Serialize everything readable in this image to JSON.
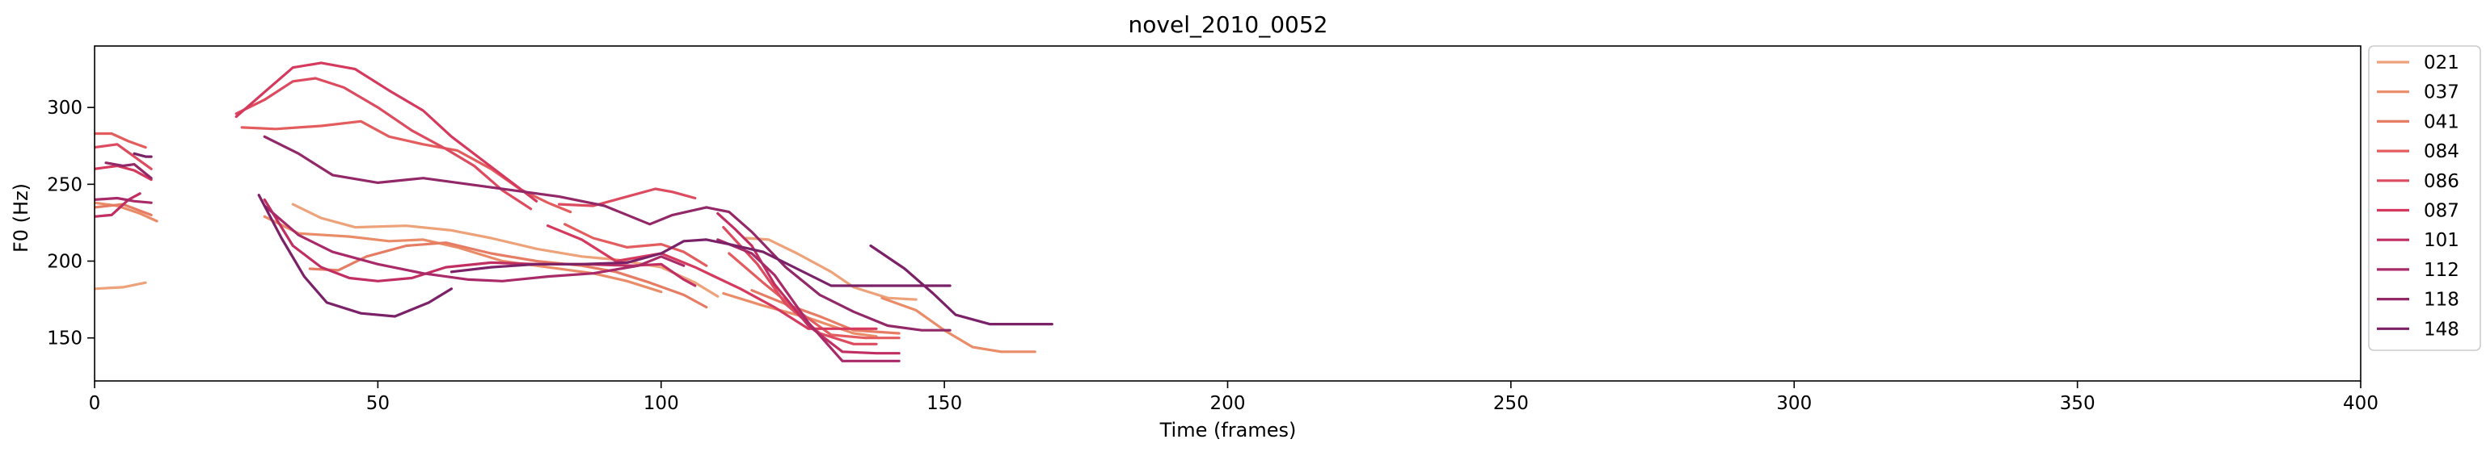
{
  "chart_data": {
    "type": "line",
    "title": "novel_2010_0052",
    "xlabel": "Time (frames)",
    "ylabel": "F0 (Hz)",
    "xlim": [
      0,
      400
    ],
    "ylim": [
      122,
      340
    ],
    "xticks": [
      0,
      50,
      100,
      150,
      200,
      250,
      300,
      350,
      400
    ],
    "yticks": [
      150,
      200,
      250,
      300
    ],
    "grid": false,
    "legend_position": "outside-right-top",
    "series": [
      {
        "name": "021",
        "color": "#eda27a",
        "segments": [
          [
            [
              0,
              182
            ],
            [
              5,
              183
            ],
            [
              9,
              186
            ]
          ],
          [
            [
              35,
              237
            ],
            [
              40,
              228
            ],
            [
              46,
              222
            ],
            [
              55,
              223
            ],
            [
              63,
              220
            ],
            [
              70,
              215
            ],
            [
              78,
              208
            ],
            [
              86,
              203
            ],
            [
              92,
              201
            ],
            [
              100,
              196
            ],
            [
              106,
              186
            ],
            [
              110,
              177
            ]
          ],
          [
            [
              115,
              215
            ],
            [
              119,
              214
            ],
            [
              124,
              205
            ],
            [
              130,
              193
            ],
            [
              134,
              183
            ],
            [
              140,
              176
            ],
            [
              145,
              175
            ]
          ]
        ]
      },
      {
        "name": "037",
        "color": "#ea8c68",
        "segments": [
          [
            [
              0,
              238
            ],
            [
              4,
              236
            ],
            [
              8,
              231
            ],
            [
              11,
              226
            ]
          ],
          [
            [
              30,
              229
            ],
            [
              36,
              218
            ],
            [
              45,
              216
            ],
            [
              52,
              213
            ],
            [
              58,
              214
            ],
            [
              64,
              209
            ],
            [
              72,
              200
            ],
            [
              80,
              196
            ],
            [
              88,
              192
            ],
            [
              94,
              187
            ],
            [
              100,
              180
            ]
          ],
          [
            [
              111,
              179
            ],
            [
              118,
              171
            ],
            [
              126,
              163
            ],
            [
              134,
              153
            ],
            [
              138,
              151
            ]
          ],
          [
            [
              139,
              176
            ],
            [
              145,
              168
            ],
            [
              150,
              155
            ],
            [
              155,
              144
            ],
            [
              160,
              141
            ],
            [
              166,
              141
            ]
          ]
        ]
      },
      {
        "name": "041",
        "color": "#e67c63",
        "segments": [
          [
            [
              0,
              235
            ],
            [
              5,
              237
            ],
            [
              10,
              230
            ]
          ],
          [
            [
              38,
              195
            ],
            [
              43,
              194
            ],
            [
              48,
              203
            ],
            [
              55,
              210
            ],
            [
              62,
              212
            ],
            [
              70,
              205
            ],
            [
              78,
              200
            ],
            [
              86,
              197
            ],
            [
              92,
              193
            ],
            [
              98,
              186
            ],
            [
              104,
              178
            ],
            [
              108,
              170
            ]
          ],
          [
            [
              116,
              181
            ],
            [
              122,
              172
            ],
            [
              128,
              164
            ],
            [
              134,
              155
            ],
            [
              142,
              153
            ]
          ]
        ]
      },
      {
        "name": "084",
        "color": "#e35d5f",
        "segments": [
          [
            [
              0,
              283
            ],
            [
              3,
              283
            ],
            [
              6,
              278
            ],
            [
              9,
              274
            ]
          ],
          [
            [
              26,
              287
            ],
            [
              32,
              286
            ],
            [
              40,
              288
            ],
            [
              47,
              291
            ],
            [
              52,
              281
            ],
            [
              58,
              276
            ],
            [
              64,
              272
            ],
            [
              70,
              260
            ],
            [
              75,
              247
            ],
            [
              80,
              238
            ],
            [
              84,
              232
            ]
          ],
          [
            [
              83,
              224
            ],
            [
              88,
              215
            ],
            [
              94,
              209
            ],
            [
              100,
              211
            ],
            [
              104,
              206
            ],
            [
              108,
              197
            ]
          ],
          [
            [
              112,
              205
            ],
            [
              118,
              186
            ],
            [
              124,
              168
            ],
            [
              130,
              152
            ],
            [
              136,
              150
            ],
            [
              142,
              150
            ]
          ]
        ]
      },
      {
        "name": "086",
        "color": "#dc4b5f",
        "segments": [
          [
            [
              0,
              274
            ],
            [
              4,
              276
            ],
            [
              7,
              268
            ],
            [
              10,
              260
            ]
          ],
          [
            [
              25,
              296
            ],
            [
              30,
              305
            ],
            [
              35,
              317
            ],
            [
              39,
              319
            ],
            [
              44,
              313
            ],
            [
              50,
              300
            ],
            [
              56,
              285
            ],
            [
              62,
              273
            ],
            [
              67,
              262
            ],
            [
              72,
              246
            ],
            [
              77,
              234
            ]
          ],
          [
            [
              82,
              237
            ],
            [
              88,
              236
            ],
            [
              94,
              242
            ],
            [
              99,
              247
            ],
            [
              102,
              245
            ],
            [
              106,
              241
            ]
          ],
          [
            [
              111,
              222
            ],
            [
              117,
              198
            ],
            [
              122,
              172
            ],
            [
              128,
              153
            ],
            [
              134,
              146
            ],
            [
              138,
              146
            ]
          ]
        ]
      },
      {
        "name": "087",
        "color": "#d5395e",
        "segments": [
          [
            [
              0,
              260
            ],
            [
              4,
              262
            ],
            [
              7,
              259
            ],
            [
              10,
              253
            ]
          ],
          [
            [
              25,
              294
            ],
            [
              30,
              310
            ],
            [
              35,
              326
            ],
            [
              40,
              329
            ],
            [
              46,
              325
            ],
            [
              52,
              311
            ],
            [
              58,
              298
            ],
            [
              63,
              281
            ],
            [
              68,
              267
            ],
            [
              73,
              253
            ],
            [
              78,
              239
            ]
          ],
          [
            [
              80,
              223
            ],
            [
              86,
              214
            ],
            [
              92,
              200
            ],
            [
              100,
              205
            ],
            [
              106,
              196
            ],
            [
              110,
              189
            ],
            [
              114,
              182
            ],
            [
              120,
              170
            ],
            [
              126,
              156
            ],
            [
              132,
              156
            ],
            [
              138,
              156
            ]
          ]
        ]
      },
      {
        "name": "101",
        "color": "#c12e62",
        "segments": [
          [
            [
              0,
              229
            ],
            [
              3,
              230
            ],
            [
              6,
              240
            ],
            [
              8,
              244
            ]
          ],
          [
            [
              30,
              240
            ],
            [
              35,
              210
            ],
            [
              40,
              196
            ],
            [
              45,
              189
            ],
            [
              50,
              187
            ],
            [
              56,
              189
            ],
            [
              62,
              196
            ],
            [
              70,
              199
            ],
            [
              78,
              198
            ],
            [
              86,
              198
            ],
            [
              95,
              197
            ],
            [
              100,
              198
            ],
            [
              104,
              188
            ],
            [
              106,
              184
            ]
          ],
          [
            [
              110,
              231
            ],
            [
              113,
              221
            ],
            [
              116,
              210
            ],
            [
              120,
              185
            ],
            [
              126,
              158
            ],
            [
              132,
              141
            ],
            [
              138,
              140
            ],
            [
              142,
              140
            ]
          ]
        ]
      },
      {
        "name": "112",
        "color": "#a92a68",
        "segments": [
          [
            [
              0,
              240
            ],
            [
              4,
              241
            ],
            [
              7,
              239
            ],
            [
              10,
              238
            ]
          ],
          [
            [
              30,
              236
            ],
            [
              36,
              217
            ],
            [
              42,
              206
            ],
            [
              50,
              198
            ],
            [
              58,
              192
            ],
            [
              66,
              188
            ],
            [
              72,
              187
            ],
            [
              80,
              190
            ],
            [
              88,
              192
            ],
            [
              96,
              197
            ],
            [
              100,
              203
            ],
            [
              104,
              197
            ]
          ],
          [
            [
              110,
              214
            ],
            [
              116,
              205
            ],
            [
              120,
              191
            ],
            [
              126,
              160
            ],
            [
              132,
              135
            ],
            [
              138,
              135
            ],
            [
              142,
              135
            ]
          ]
        ]
      },
      {
        "name": "118",
        "color": "#922868",
        "segments": [
          [
            [
              2,
              264
            ],
            [
              5,
              262
            ],
            [
              7,
              263
            ],
            [
              10,
              254
            ]
          ],
          [
            [
              30,
              281
            ],
            [
              36,
              270
            ],
            [
              42,
              256
            ],
            [
              50,
              251
            ],
            [
              58,
              254
            ],
            [
              66,
              250
            ],
            [
              74,
              246
            ],
            [
              82,
              242
            ],
            [
              90,
              236
            ],
            [
              98,
              224
            ],
            [
              102,
              230
            ],
            [
              108,
              235
            ],
            [
              112,
              232
            ],
            [
              116,
              219
            ],
            [
              122,
              196
            ],
            [
              128,
              178
            ],
            [
              134,
              167
            ],
            [
              140,
              158
            ],
            [
              146,
              155
            ],
            [
              151,
              155
            ]
          ]
        ]
      },
      {
        "name": "148",
        "color": "#7a2168",
        "segments": [
          [
            [
              7,
              270
            ],
            [
              9,
              268
            ],
            [
              10,
              268
            ]
          ],
          [
            [
              29,
              243
            ],
            [
              33,
              215
            ],
            [
              37,
              190
            ],
            [
              41,
              173
            ],
            [
              47,
              166
            ],
            [
              53,
              164
            ],
            [
              59,
              173
            ],
            [
              63,
              182
            ]
          ],
          [
            [
              63,
              193
            ],
            [
              70,
              196
            ],
            [
              78,
              198
            ],
            [
              86,
              198
            ],
            [
              94,
              199
            ],
            [
              100,
              205
            ],
            [
              104,
              213
            ],
            [
              108,
              214
            ],
            [
              112,
              211
            ],
            [
              118,
              206
            ],
            [
              124,
              195
            ],
            [
              130,
              184
            ],
            [
              138,
              184
            ],
            [
              151,
              184
            ]
          ],
          [
            [
              137,
              210
            ],
            [
              143,
              195
            ],
            [
              148,
              179
            ],
            [
              152,
              165
            ],
            [
              158,
              159
            ],
            [
              164,
              159
            ],
            [
              169,
              159
            ]
          ]
        ]
      }
    ]
  }
}
